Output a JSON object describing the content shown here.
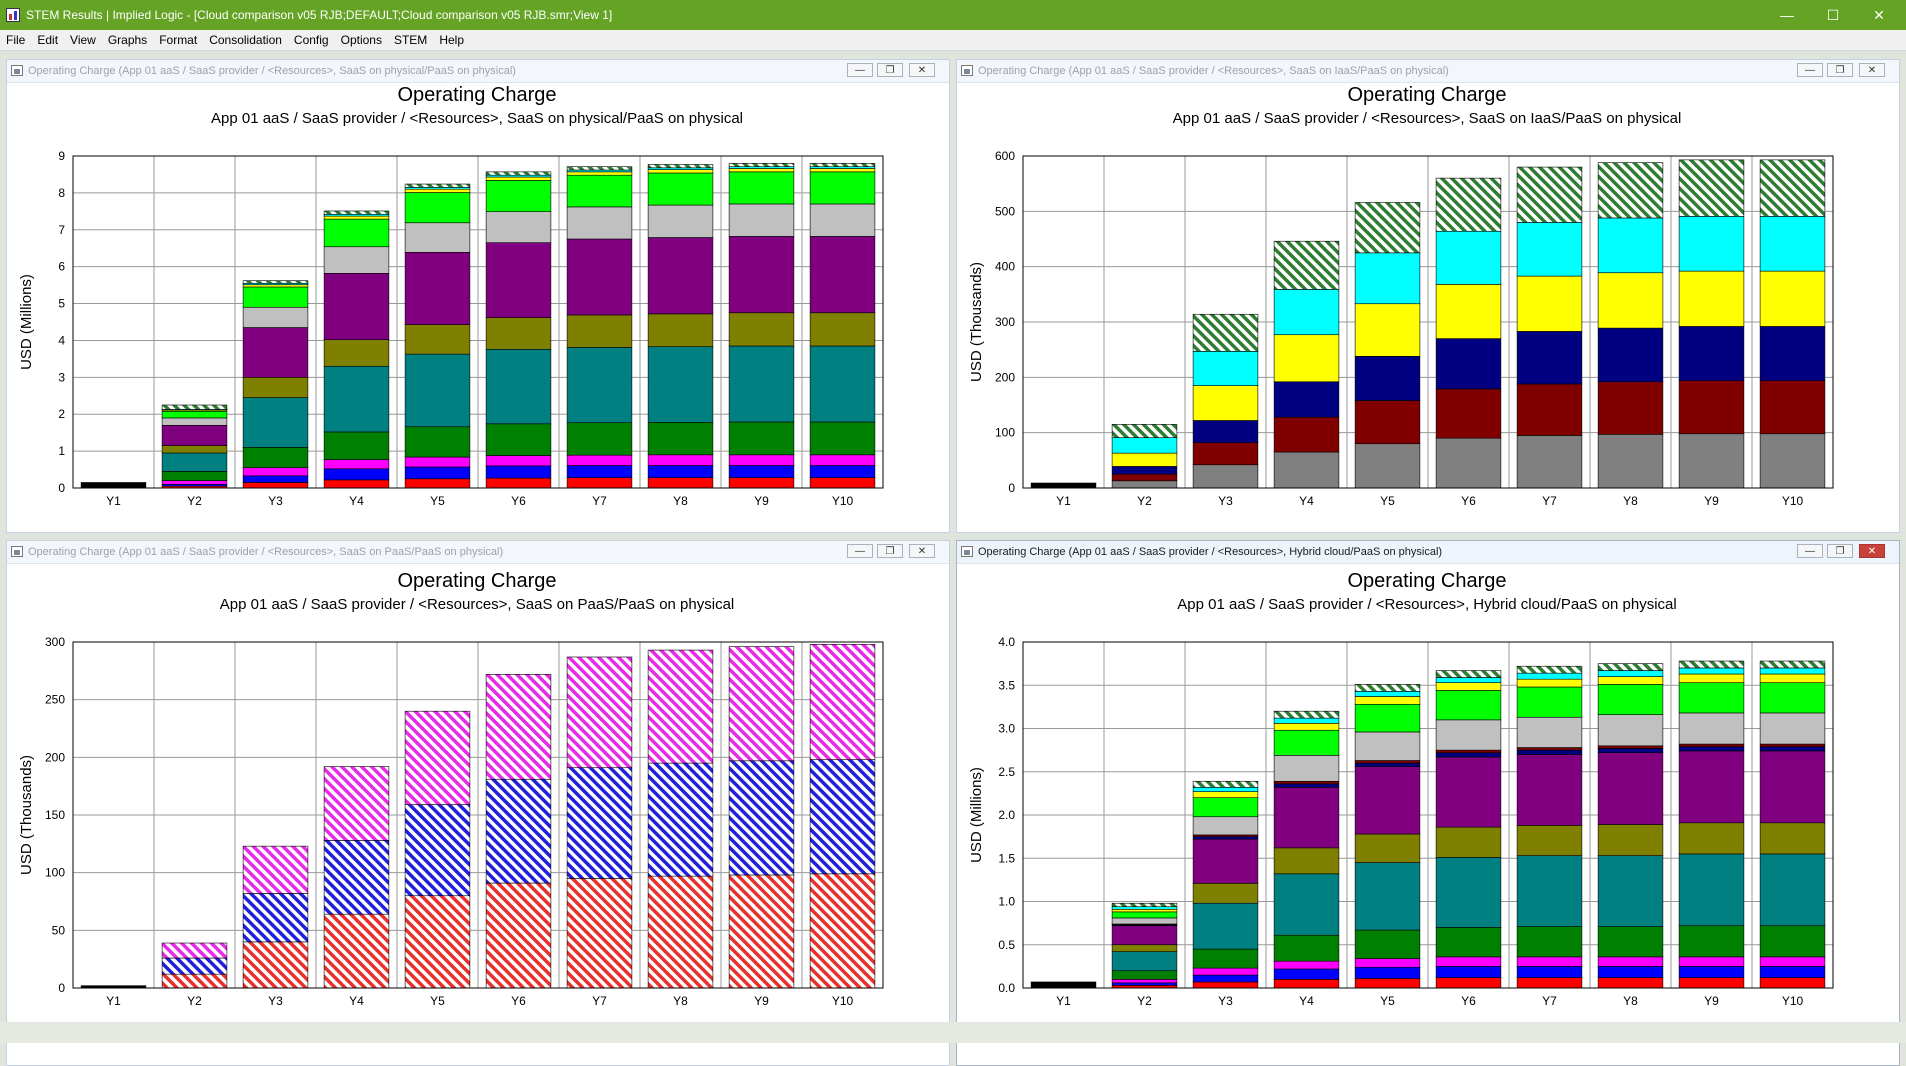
{
  "app": {
    "title": "STEM Results | Implied Logic - [Cloud comparison v05 RJB;DEFAULT;Cloud comparison v05 RJB.smr;View 1]",
    "controls": {
      "minimize": "—",
      "maximize": "☐",
      "close": "✕"
    }
  },
  "menu": [
    "File",
    "Edit",
    "View",
    "Graphs",
    "Format",
    "Consolidation",
    "Config",
    "Options",
    "STEM",
    "Help"
  ],
  "colors": {
    "red": "#ff0000",
    "blue": "#0000ff",
    "magenta": "#ff00ff",
    "green": "#008000",
    "teal": "#008080",
    "olive": "#808000",
    "purple": "#800080",
    "silver": "#c0c0c0",
    "lime": "#00ff00",
    "yellow": "#ffff00",
    "cyan": "#00ffff",
    "navy": "#000080",
    "maroon": "#800000",
    "gray": "#808080",
    "black": "#000000",
    "hatch_green": "#2e7d32",
    "hatch_red": "#e8312d",
    "hatch_blue": "#1f1fdc",
    "hatch_magenta": "#e82be8"
  },
  "windows": [
    {
      "title": "Operating Charge (App 01 aaS / SaaS provider / <Resources>, SaaS on physical/PaaS on physical)",
      "active": false,
      "chart_data": {
        "type": "bar",
        "stacked": true,
        "title": "Operating Charge",
        "subtitle": "App 01 aaS / SaaS provider / <Resources>, SaaS on physical/PaaS on physical",
        "ylabel": "USD  (Millions)",
        "ylim": [
          0,
          9
        ],
        "yticks": [
          "0",
          "1",
          "2",
          "3",
          "4",
          "5",
          "6",
          "7",
          "8",
          "9"
        ],
        "grid": true,
        "categories": [
          "Y1",
          "Y2",
          "Y3",
          "Y4",
          "Y5",
          "Y6",
          "Y7",
          "Y8",
          "Y9",
          "Y10"
        ],
        "series": [
          {
            "color": "black",
            "values": [
              0.15,
              0.0,
              0.0,
              0.0,
              0.0,
              0.0,
              0.0,
              0.0,
              0.0,
              0.0
            ]
          },
          {
            "color": "red",
            "values": [
              0,
              0.05,
              0.15,
              0.22,
              0.25,
              0.27,
              0.28,
              0.28,
              0.28,
              0.28
            ]
          },
          {
            "color": "blue",
            "values": [
              0,
              0.05,
              0.18,
              0.3,
              0.32,
              0.33,
              0.33,
              0.33,
              0.33,
              0.33
            ]
          },
          {
            "color": "magenta",
            "values": [
              0,
              0.1,
              0.22,
              0.25,
              0.27,
              0.28,
              0.28,
              0.29,
              0.29,
              0.29
            ]
          },
          {
            "color": "green",
            "values": [
              0,
              0.25,
              0.55,
              0.75,
              0.82,
              0.86,
              0.88,
              0.88,
              0.89,
              0.89
            ]
          },
          {
            "color": "teal",
            "values": [
              0,
              0.5,
              1.35,
              1.78,
              1.97,
              2.02,
              2.04,
              2.05,
              2.06,
              2.06
            ]
          },
          {
            "color": "olive",
            "values": [
              0,
              0.2,
              0.55,
              0.72,
              0.8,
              0.86,
              0.88,
              0.89,
              0.9,
              0.9
            ]
          },
          {
            "color": "purple",
            "values": [
              0,
              0.55,
              1.35,
              1.8,
              1.96,
              2.03,
              2.06,
              2.07,
              2.07,
              2.07
            ]
          },
          {
            "color": "silver",
            "values": [
              0,
              0.2,
              0.55,
              0.72,
              0.8,
              0.84,
              0.87,
              0.88,
              0.88,
              0.88
            ]
          },
          {
            "color": "lime",
            "values": [
              0,
              0.18,
              0.55,
              0.75,
              0.82,
              0.85,
              0.86,
              0.87,
              0.87,
              0.87
            ]
          },
          {
            "color": "yellow",
            "values": [
              0,
              0.03,
              0.06,
              0.08,
              0.09,
              0.09,
              0.09,
              0.09,
              0.09,
              0.09
            ]
          },
          {
            "color": "cyan",
            "values": [
              0,
              0.02,
              0.04,
              0.05,
              0.05,
              0.05,
              0.05,
              0.05,
              0.05,
              0.05
            ]
          },
          {
            "color": "hatch_green",
            "hatch": true,
            "values": [
              0,
              0.12,
              0.07,
              0.09,
              0.09,
              0.09,
              0.09,
              0.09,
              0.09,
              0.09
            ]
          }
        ]
      }
    },
    {
      "title": "Operating Charge (App 01 aaS / SaaS provider / <Resources>, SaaS on IaaS/PaaS on physical)",
      "active": false,
      "chart_data": {
        "type": "bar",
        "stacked": true,
        "title": "Operating Charge",
        "subtitle": "App 01 aaS / SaaS provider / <Resources>, SaaS on IaaS/PaaS on physical",
        "ylabel": "USD  (Thousands)",
        "ylim": [
          0,
          600
        ],
        "yticks": [
          "0",
          "100",
          "200",
          "300",
          "400",
          "500",
          "600"
        ],
        "grid": true,
        "categories": [
          "Y1",
          "Y2",
          "Y3",
          "Y4",
          "Y5",
          "Y6",
          "Y7",
          "Y8",
          "Y9",
          "Y10"
        ],
        "series": [
          {
            "color": "black",
            "values": [
              9,
              0,
              0,
              0,
              0,
              0,
              0,
              0,
              0,
              0
            ]
          },
          {
            "color": "gray",
            "values": [
              0,
              13,
              42,
              65,
              80,
              90,
              95,
              97,
              98,
              98
            ]
          },
          {
            "color": "maroon",
            "values": [
              0,
              12,
              40,
              63,
              78,
              89,
              93,
              95,
              96,
              96
            ]
          },
          {
            "color": "navy",
            "values": [
              0,
              14,
              40,
              64,
              80,
              91,
              95,
              97,
              98,
              98
            ]
          },
          {
            "color": "yellow",
            "values": [
              0,
              24,
              63,
              85,
              95,
              98,
              100,
              100,
              100,
              100
            ]
          },
          {
            "color": "cyan",
            "values": [
              0,
              28,
              62,
              82,
              92,
              96,
              97,
              99,
              99,
              99
            ]
          },
          {
            "color": "hatch_green",
            "hatch": true,
            "values": [
              0,
              24,
              67,
              87,
              91,
              96,
              100,
              100,
              102,
              102
            ]
          }
        ]
      }
    },
    {
      "title": "Operating Charge (App 01 aaS / SaaS provider / <Resources>, SaaS on PaaS/PaaS on physical)",
      "active": false,
      "chart_data": {
        "type": "bar",
        "stacked": true,
        "title": "Operating Charge",
        "subtitle": "App 01 aaS / SaaS provider / <Resources>, SaaS on PaaS/PaaS on physical",
        "ylabel": "USD  (Thousands)",
        "ylim": [
          0,
          300
        ],
        "yticks": [
          "0",
          "50",
          "100",
          "150",
          "200",
          "250",
          "300"
        ],
        "grid": true,
        "categories": [
          "Y1",
          "Y2",
          "Y3",
          "Y4",
          "Y5",
          "Y6",
          "Y7",
          "Y8",
          "Y9",
          "Y10"
        ],
        "series": [
          {
            "color": "black",
            "values": [
              2,
              0,
              0,
              0,
              0,
              0,
              0,
              0,
              0,
              0
            ]
          },
          {
            "color": "hatch_red",
            "hatch": true,
            "values": [
              0,
              12,
              40,
              64,
              80,
              91,
              95,
              97,
              98,
              99
            ]
          },
          {
            "color": "hatch_blue",
            "hatch": true,
            "values": [
              0,
              14,
              42,
              64,
              79,
              90,
              96,
              98,
              99,
              99
            ]
          },
          {
            "color": "hatch_magenta",
            "hatch": true,
            "values": [
              0,
              13,
              41,
              64,
              81,
              91,
              96,
              98,
              99,
              100
            ]
          }
        ]
      }
    },
    {
      "title": "Operating Charge (App 01 aaS / SaaS provider / <Resources>, Hybrid cloud/PaaS on physical)",
      "active": true,
      "chart_data": {
        "type": "bar",
        "stacked": true,
        "title": "Operating Charge",
        "subtitle": "App 01 aaS / SaaS provider / <Resources>, Hybrid cloud/PaaS on physical",
        "ylabel": "USD  (Millions)",
        "ylim": [
          0,
          4.0
        ],
        "yticks": [
          "0.0",
          "0.5",
          "1.0",
          "1.5",
          "2.0",
          "2.5",
          "3.0",
          "3.5",
          "4.0"
        ],
        "grid": true,
        "categories": [
          "Y1",
          "Y2",
          "Y3",
          "Y4",
          "Y5",
          "Y6",
          "Y7",
          "Y8",
          "Y9",
          "Y10"
        ],
        "series": [
          {
            "color": "black",
            "values": [
              0.07,
              0,
              0,
              0,
              0,
              0,
              0,
              0,
              0,
              0
            ]
          },
          {
            "color": "red",
            "values": [
              0,
              0.03,
              0.07,
              0.1,
              0.11,
              0.12,
              0.12,
              0.12,
              0.12,
              0.12
            ]
          },
          {
            "color": "blue",
            "values": [
              0,
              0.03,
              0.08,
              0.12,
              0.13,
              0.13,
              0.13,
              0.13,
              0.13,
              0.13
            ]
          },
          {
            "color": "magenta",
            "values": [
              0,
              0.04,
              0.08,
              0.09,
              0.1,
              0.11,
              0.11,
              0.11,
              0.11,
              0.11
            ]
          },
          {
            "color": "green",
            "values": [
              0,
              0.1,
              0.22,
              0.3,
              0.33,
              0.34,
              0.35,
              0.35,
              0.36,
              0.36
            ]
          },
          {
            "color": "teal",
            "values": [
              0,
              0.22,
              0.53,
              0.71,
              0.78,
              0.81,
              0.82,
              0.82,
              0.83,
              0.83
            ]
          },
          {
            "color": "olive",
            "values": [
              0,
              0.08,
              0.23,
              0.3,
              0.33,
              0.35,
              0.35,
              0.36,
              0.36,
              0.36
            ]
          },
          {
            "color": "purple",
            "values": [
              0,
              0.22,
              0.51,
              0.7,
              0.78,
              0.81,
              0.82,
              0.83,
              0.83,
              0.83
            ]
          },
          {
            "color": "navy",
            "values": [
              0,
              0.01,
              0.03,
              0.04,
              0.04,
              0.05,
              0.05,
              0.05,
              0.05,
              0.05
            ]
          },
          {
            "color": "maroon",
            "values": [
              0,
              0.01,
              0.02,
              0.03,
              0.03,
              0.03,
              0.03,
              0.03,
              0.03,
              0.03
            ]
          },
          {
            "color": "silver",
            "values": [
              0,
              0.07,
              0.21,
              0.3,
              0.33,
              0.35,
              0.35,
              0.36,
              0.36,
              0.36
            ]
          },
          {
            "color": "lime",
            "values": [
              0,
              0.07,
              0.22,
              0.29,
              0.32,
              0.34,
              0.35,
              0.35,
              0.35,
              0.35
            ]
          },
          {
            "color": "yellow",
            "values": [
              0,
              0.03,
              0.07,
              0.08,
              0.09,
              0.09,
              0.09,
              0.09,
              0.1,
              0.1
            ]
          },
          {
            "color": "cyan",
            "values": [
              0,
              0.03,
              0.05,
              0.06,
              0.06,
              0.06,
              0.07,
              0.07,
              0.07,
              0.07
            ]
          },
          {
            "color": "hatch_green",
            "hatch": true,
            "values": [
              0,
              0.04,
              0.07,
              0.08,
              0.08,
              0.08,
              0.08,
              0.08,
              0.08,
              0.08
            ]
          }
        ]
      }
    }
  ]
}
